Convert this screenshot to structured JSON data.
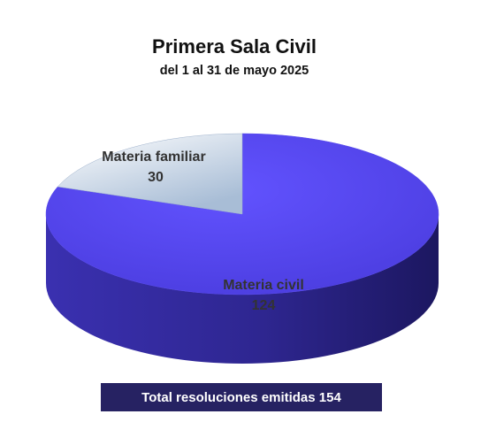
{
  "chart_data": {
    "type": "pie",
    "title": "Primera Sala Civil",
    "subtitle": "del 1 al 31 de mayo 2025",
    "slices": [
      {
        "label": "Materia civil",
        "value": 124,
        "color": "#5b4cf2"
      },
      {
        "label": "Materia familiar",
        "value": 30,
        "color": "#c8d6e6"
      }
    ],
    "total_text": "Total resoluciones emitidas 154"
  }
}
